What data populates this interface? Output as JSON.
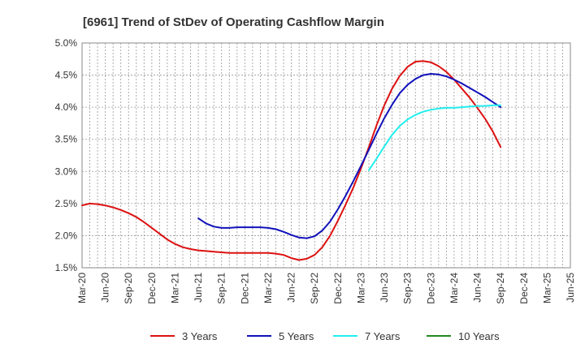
{
  "chart_data": {
    "type": "line",
    "title": "[6961]  Trend of StDev of Operating Cashflow Margin",
    "xlabel": "",
    "ylabel": "",
    "x_ticks": [
      "Mar-20",
      "Jun-20",
      "Sep-20",
      "Dec-20",
      "Mar-21",
      "Jun-21",
      "Sep-21",
      "Dec-21",
      "Mar-22",
      "Jun-22",
      "Sep-22",
      "Dec-22",
      "Mar-23",
      "Jun-23",
      "Sep-23",
      "Dec-23",
      "Mar-24",
      "Jun-24",
      "Sep-24",
      "Dec-24",
      "Mar-25",
      "Jun-25"
    ],
    "y_ticks": [
      "1.5%",
      "2.0%",
      "2.5%",
      "3.0%",
      "3.5%",
      "4.0%",
      "4.5%",
      "5.0%"
    ],
    "ylim": [
      1.5,
      5.0
    ],
    "grid": true,
    "legend_position": "bottom",
    "series": [
      {
        "name": "3 Years",
        "color": "#dd1111",
        "start_index": 0,
        "values": [
          2.47,
          2.5,
          2.49,
          2.47,
          2.44,
          2.4,
          2.35,
          2.29,
          2.21,
          2.12,
          2.03,
          1.94,
          1.87,
          1.82,
          1.79,
          1.77,
          1.76,
          1.75,
          1.74,
          1.73,
          1.73,
          1.73,
          1.73,
          1.73,
          1.73,
          1.72,
          1.7,
          1.65,
          1.62,
          1.64,
          1.7,
          1.82,
          2.0,
          2.23,
          2.48,
          2.75,
          3.05,
          3.38,
          3.72,
          4.03,
          4.29,
          4.49,
          4.63,
          4.71,
          4.72,
          4.7,
          4.64,
          4.55,
          4.43,
          4.29,
          4.15,
          3.99,
          3.82,
          3.62,
          3.38
        ]
      },
      {
        "name": "5 Years",
        "color": "#1111bb",
        "start_index": 15,
        "values": [
          2.27,
          2.19,
          2.14,
          2.12,
          2.12,
          2.13,
          2.13,
          2.13,
          2.13,
          2.12,
          2.1,
          2.06,
          2.01,
          1.97,
          1.96,
          1.99,
          2.08,
          2.22,
          2.41,
          2.62,
          2.85,
          3.09,
          3.34,
          3.59,
          3.83,
          4.04,
          4.22,
          4.35,
          4.44,
          4.5,
          4.52,
          4.51,
          4.48,
          4.43,
          4.37,
          4.3,
          4.23,
          4.16,
          4.08,
          4.0
        ]
      },
      {
        "name": "7 Years",
        "color": "#22eeee",
        "start_index": 37,
        "values": [
          3.02,
          3.2,
          3.39,
          3.57,
          3.71,
          3.81,
          3.88,
          3.93,
          3.96,
          3.98,
          3.99,
          3.99,
          4.0,
          4.01,
          4.02,
          4.02,
          4.03,
          4.03
        ]
      },
      {
        "name": "10 Years",
        "color": "#228822",
        "start_index": 0,
        "values": []
      }
    ]
  }
}
